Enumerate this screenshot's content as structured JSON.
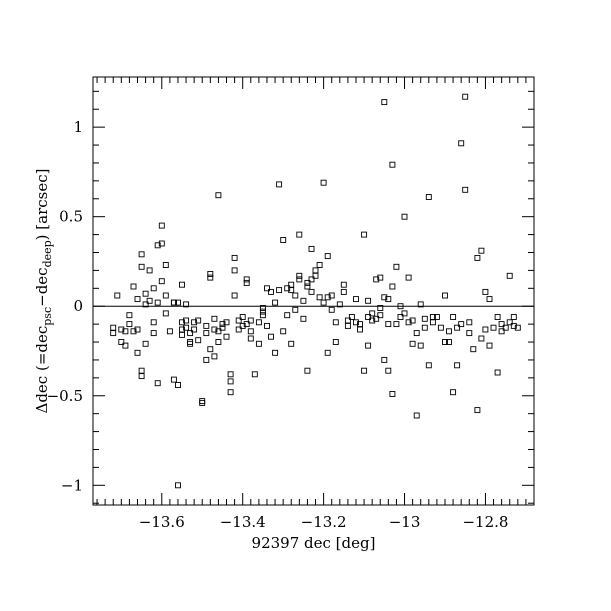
{
  "chart_data": {
    "type": "scatter",
    "title": "",
    "xlabel": "92397 dec [deg]",
    "ylabel": {
      "prefix": "Δdec (=dec",
      "sub1": "psc",
      "mid": "−dec",
      "sub2": "deep",
      "suffix": ") [arcsec]"
    },
    "xlim": [
      -13.77,
      -12.68
    ],
    "ylim": [
      -1.11,
      1.28
    ],
    "xticks": [
      -13.6,
      -13.4,
      -13.2,
      -13.0,
      -12.8
    ],
    "xtick_labels": [
      "−13.6",
      "−13.4",
      "−13.2",
      "−13",
      "−12.8"
    ],
    "yticks": [
      1,
      0.5,
      0,
      -0.5,
      -1
    ],
    "ytick_labels": [
      "1",
      "0.5",
      "0",
      "−0.5",
      "−1"
    ],
    "x_minor_step": 0.02,
    "y_minor_step": 0.1,
    "zero_line": 0,
    "marker": "open-square",
    "grid": false,
    "points": [
      [
        -13.72,
        -0.12
      ],
      [
        -13.72,
        -0.15
      ],
      [
        -13.71,
        0.06
      ],
      [
        -13.7,
        -0.2
      ],
      [
        -13.7,
        -0.13
      ],
      [
        -13.69,
        -0.22
      ],
      [
        -13.69,
        -0.14
      ],
      [
        -13.68,
        -0.1
      ],
      [
        -13.68,
        -0.05
      ],
      [
        -13.67,
        0.11
      ],
      [
        -13.67,
        -0.14
      ],
      [
        -13.66,
        -0.26
      ],
      [
        -13.66,
        0.04
      ],
      [
        -13.66,
        -0.13
      ],
      [
        -13.65,
        0.22
      ],
      [
        -13.65,
        0.29
      ],
      [
        -13.65,
        -0.36
      ],
      [
        -13.65,
        -0.39
      ],
      [
        -13.64,
        0.07
      ],
      [
        -13.64,
        -0.21
      ],
      [
        -13.64,
        0.01
      ],
      [
        -13.63,
        0.2
      ],
      [
        -13.63,
        0.03
      ],
      [
        -13.62,
        -0.15
      ],
      [
        -13.62,
        -0.09
      ],
      [
        -13.62,
        0.1
      ],
      [
        -13.61,
        0.34
      ],
      [
        -13.61,
        0.02
      ],
      [
        -13.61,
        -0.43
      ],
      [
        -13.6,
        0.14
      ],
      [
        -13.6,
        0.35
      ],
      [
        -13.6,
        0.45
      ],
      [
        -13.59,
        -0.04
      ],
      [
        -13.59,
        0.23
      ],
      [
        -13.59,
        0.06
      ],
      [
        -13.58,
        -0.14
      ],
      [
        -13.57,
        -0.41
      ],
      [
        -13.57,
        0.02
      ],
      [
        -13.57,
        0.02
      ],
      [
        -13.56,
        -0.44
      ],
      [
        -13.56,
        0.02
      ],
      [
        -13.56,
        -1.0
      ],
      [
        -13.55,
        0.12
      ],
      [
        -13.55,
        -0.09
      ],
      [
        -13.55,
        -0.16
      ],
      [
        -13.55,
        -0.13
      ],
      [
        -13.54,
        -0.08
      ],
      [
        -13.54,
        -0.12
      ],
      [
        -13.54,
        0.01
      ],
      [
        -13.53,
        -0.21
      ],
      [
        -13.53,
        -0.2
      ],
      [
        -13.53,
        -0.15
      ],
      [
        -13.52,
        -0.09
      ],
      [
        -13.52,
        -0.13
      ],
      [
        -13.51,
        -0.08
      ],
      [
        -13.51,
        -0.19
      ],
      [
        -13.5,
        -0.53
      ],
      [
        -13.5,
        -0.54
      ],
      [
        -13.49,
        -0.3
      ],
      [
        -13.49,
        -0.11
      ],
      [
        -13.49,
        -0.15
      ],
      [
        -13.48,
        0.16
      ],
      [
        -13.48,
        0.18
      ],
      [
        -13.48,
        -0.24
      ],
      [
        -13.47,
        -0.28
      ],
      [
        -13.47,
        -0.13
      ],
      [
        -13.47,
        -0.07
      ],
      [
        -13.46,
        -0.2
      ],
      [
        -13.46,
        -0.14
      ],
      [
        -13.46,
        0.62
      ],
      [
        -13.45,
        -0.1
      ],
      [
        -13.45,
        -0.12
      ],
      [
        -13.44,
        -0.17
      ],
      [
        -13.44,
        -0.09
      ],
      [
        -13.43,
        -0.42
      ],
      [
        -13.43,
        -0.38
      ],
      [
        -13.43,
        -0.48
      ],
      [
        -13.42,
        0.06
      ],
      [
        -13.42,
        0.27
      ],
      [
        -13.42,
        0.2
      ],
      [
        -13.41,
        -0.08
      ],
      [
        -13.41,
        -0.13
      ],
      [
        -13.4,
        -0.11
      ],
      [
        -13.4,
        -0.06
      ],
      [
        -13.39,
        0.13
      ],
      [
        -13.39,
        0.15
      ],
      [
        -13.39,
        -0.1
      ],
      [
        -13.38,
        -0.14
      ],
      [
        -13.38,
        -0.18
      ],
      [
        -13.38,
        -0.08
      ],
      [
        -13.37,
        -0.38
      ],
      [
        -13.36,
        -0.09
      ],
      [
        -13.36,
        -0.21
      ],
      [
        -13.35,
        -0.05
      ],
      [
        -13.35,
        -0.03
      ],
      [
        -13.35,
        -0.01
      ],
      [
        -13.34,
        0.1
      ],
      [
        -13.34,
        -0.11
      ],
      [
        -13.33,
        -0.17
      ],
      [
        -13.33,
        0.08
      ],
      [
        -13.32,
        -0.26
      ],
      [
        -13.32,
        0.02
      ],
      [
        -13.31,
        0.68
      ],
      [
        -13.31,
        0.09
      ],
      [
        -13.3,
        -0.14
      ],
      [
        -13.3,
        0.37
      ],
      [
        -13.29,
        -0.05
      ],
      [
        -13.29,
        0.1
      ],
      [
        -13.28,
        0.09
      ],
      [
        -13.28,
        0.12
      ],
      [
        -13.28,
        -0.21
      ],
      [
        -13.27,
        0.06
      ],
      [
        -13.27,
        -0.02
      ],
      [
        -13.26,
        0.4
      ],
      [
        -13.26,
        0.15
      ],
      [
        -13.26,
        0.17
      ],
      [
        -13.25,
        -0.07
      ],
      [
        -13.25,
        0.03
      ],
      [
        -13.24,
        -0.36
      ],
      [
        -13.24,
        0.11
      ],
      [
        -13.24,
        0.13
      ],
      [
        -13.23,
        0.08
      ],
      [
        -13.23,
        0.32
      ],
      [
        -13.23,
        0.15
      ],
      [
        -13.22,
        0.2
      ],
      [
        -13.22,
        0.17
      ],
      [
        -13.21,
        0.05
      ],
      [
        -13.21,
        0.23
      ],
      [
        -13.2,
        0.69
      ],
      [
        -13.2,
        0.02
      ],
      [
        -13.19,
        -0.26
      ],
      [
        -13.19,
        0.05
      ],
      [
        -13.19,
        0.28
      ],
      [
        -13.18,
        -0.02
      ],
      [
        -13.18,
        0.06
      ],
      [
        -13.17,
        -0.09
      ],
      [
        -13.17,
        -0.2
      ],
      [
        -13.16,
        0.01
      ],
      [
        -13.15,
        0.12
      ],
      [
        -13.15,
        0.08
      ],
      [
        -13.14,
        -0.11
      ],
      [
        -13.14,
        -0.08
      ],
      [
        -13.13,
        -0.06
      ],
      [
        -13.12,
        -0.09
      ],
      [
        -13.12,
        0.04
      ],
      [
        -13.11,
        -0.1
      ],
      [
        -13.11,
        -0.13
      ],
      [
        -13.1,
        -0.36
      ],
      [
        -13.1,
        0.4
      ],
      [
        -13.09,
        -0.22
      ],
      [
        -13.09,
        0.03
      ],
      [
        -13.09,
        -0.06
      ],
      [
        -13.08,
        -0.08
      ],
      [
        -13.08,
        -0.04
      ],
      [
        -13.07,
        -0.07
      ],
      [
        -13.07,
        0.15
      ],
      [
        -13.06,
        -0.01
      ],
      [
        -13.06,
        0.16
      ],
      [
        -13.06,
        -0.05
      ],
      [
        -13.05,
        1.14
      ],
      [
        -13.05,
        -0.3
      ],
      [
        -13.05,
        0.05
      ],
      [
        -13.04,
        -0.36
      ],
      [
        -13.04,
        -0.1
      ],
      [
        -13.04,
        0.04
      ],
      [
        -13.03,
        0.79
      ],
      [
        -13.03,
        -0.49
      ],
      [
        -13.03,
        0.11
      ],
      [
        -13.02,
        -0.1
      ],
      [
        -13.02,
        0.22
      ],
      [
        -13.01,
        0.0
      ],
      [
        -13.01,
        -0.06
      ],
      [
        -13.0,
        0.5
      ],
      [
        -13.0,
        -0.04
      ],
      [
        -12.99,
        0.16
      ],
      [
        -12.99,
        -0.09
      ],
      [
        -12.98,
        -0.21
      ],
      [
        -12.98,
        -0.08
      ],
      [
        -12.97,
        -0.15
      ],
      [
        -12.97,
        -0.61
      ],
      [
        -12.96,
        -0.22
      ],
      [
        -12.96,
        0.01
      ],
      [
        -12.95,
        -0.12
      ],
      [
        -12.95,
        -0.07
      ],
      [
        -12.94,
        -0.33
      ],
      [
        -12.94,
        0.61
      ],
      [
        -12.93,
        -0.09
      ],
      [
        -12.93,
        -0.06
      ],
      [
        -12.92,
        -0.06
      ],
      [
        -12.91,
        -0.12
      ],
      [
        -12.9,
        -0.2
      ],
      [
        -12.9,
        0.06
      ],
      [
        -12.89,
        -0.14
      ],
      [
        -12.89,
        -0.2
      ],
      [
        -12.88,
        -0.06
      ],
      [
        -12.88,
        -0.48
      ],
      [
        -12.87,
        -0.33
      ],
      [
        -12.87,
        -0.12
      ],
      [
        -12.86,
        0.91
      ],
      [
        -12.86,
        -0.1
      ],
      [
        -12.85,
        1.17
      ],
      [
        -12.85,
        0.65
      ],
      [
        -12.84,
        -0.15
      ],
      [
        -12.84,
        -0.09
      ],
      [
        -12.83,
        -0.24
      ],
      [
        -12.82,
        -0.58
      ],
      [
        -12.82,
        0.27
      ],
      [
        -12.81,
        0.31
      ],
      [
        -12.81,
        -0.18
      ],
      [
        -12.8,
        -0.13
      ],
      [
        -12.8,
        0.08
      ],
      [
        -12.79,
        0.04
      ],
      [
        -12.79,
        -0.22
      ],
      [
        -12.78,
        -0.12
      ],
      [
        -12.77,
        -0.37
      ],
      [
        -12.77,
        -0.06
      ],
      [
        -12.76,
        -0.14
      ],
      [
        -12.76,
        -0.1
      ],
      [
        -12.75,
        -0.12
      ],
      [
        -12.74,
        0.17
      ],
      [
        -12.74,
        -0.09
      ],
      [
        -12.73,
        -0.06
      ],
      [
        -12.73,
        -0.11
      ],
      [
        -12.72,
        -0.12
      ]
    ]
  }
}
